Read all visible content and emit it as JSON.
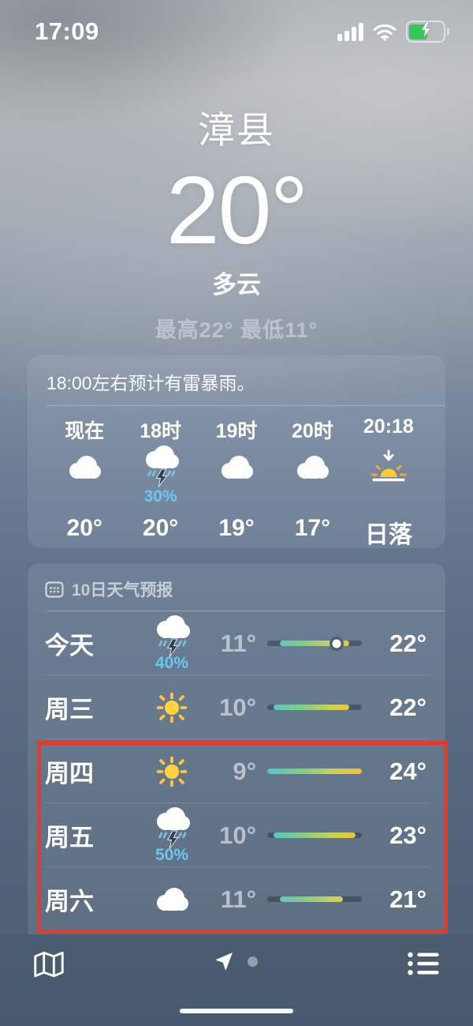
{
  "status_bar": {
    "time": "17:09",
    "icons": [
      "cellular-signal",
      "wifi",
      "battery-charging"
    ]
  },
  "header": {
    "city": "漳县",
    "temperature": "20°",
    "condition": "多云",
    "high_low": "最高22° 最低11°"
  },
  "hourly": {
    "advisory": "18:00左右预计有雷暴雨。",
    "items": [
      {
        "time": "现在",
        "icon": "cloud",
        "temp": "20°"
      },
      {
        "time": "18时",
        "icon": "storm",
        "precip": "30%",
        "temp": "20°"
      },
      {
        "time": "19时",
        "icon": "cloud",
        "temp": "19°"
      },
      {
        "time": "20时",
        "icon": "cloud",
        "temp": "17°"
      },
      {
        "time": "20:18",
        "icon": "sunset",
        "temp": "日落"
      }
    ]
  },
  "daily": {
    "title": "10日天气预报",
    "scale": {
      "min": 9,
      "max": 24
    },
    "rows": [
      {
        "day": "今天",
        "icon": "storm",
        "precip": "40%",
        "low": 11,
        "high": 22,
        "low_label": "11°",
        "high_label": "22°",
        "current": 20
      },
      {
        "day": "周三",
        "icon": "sun",
        "low": 10,
        "high": 22,
        "low_label": "10°",
        "high_label": "22°"
      },
      {
        "day": "周四",
        "icon": "sun",
        "low": 9,
        "high": 24,
        "low_label": "9°",
        "high_label": "24°"
      },
      {
        "day": "周五",
        "icon": "storm",
        "precip": "50%",
        "low": 10,
        "high": 23,
        "low_label": "10°",
        "high_label": "23°"
      },
      {
        "day": "周六",
        "icon": "cloud",
        "low": 11,
        "high": 21,
        "low_label": "11°",
        "high_label": "21°"
      }
    ]
  },
  "annotation": {
    "highlight_color": "#e5392e",
    "highlighted_rows": [
      "周四",
      "周五",
      "周六"
    ]
  },
  "toolbar": {
    "icons": [
      "map",
      "location",
      "page-dot",
      "list"
    ]
  },
  "colors": {
    "precip_text": "#6fc5f0",
    "bar_gradient": [
      "#53c6c4",
      "#7fcb8b",
      "#cdd159",
      "#f2bc3d"
    ],
    "battery_charge": "#35c759",
    "sun_yellow": "#ffd23f"
  }
}
